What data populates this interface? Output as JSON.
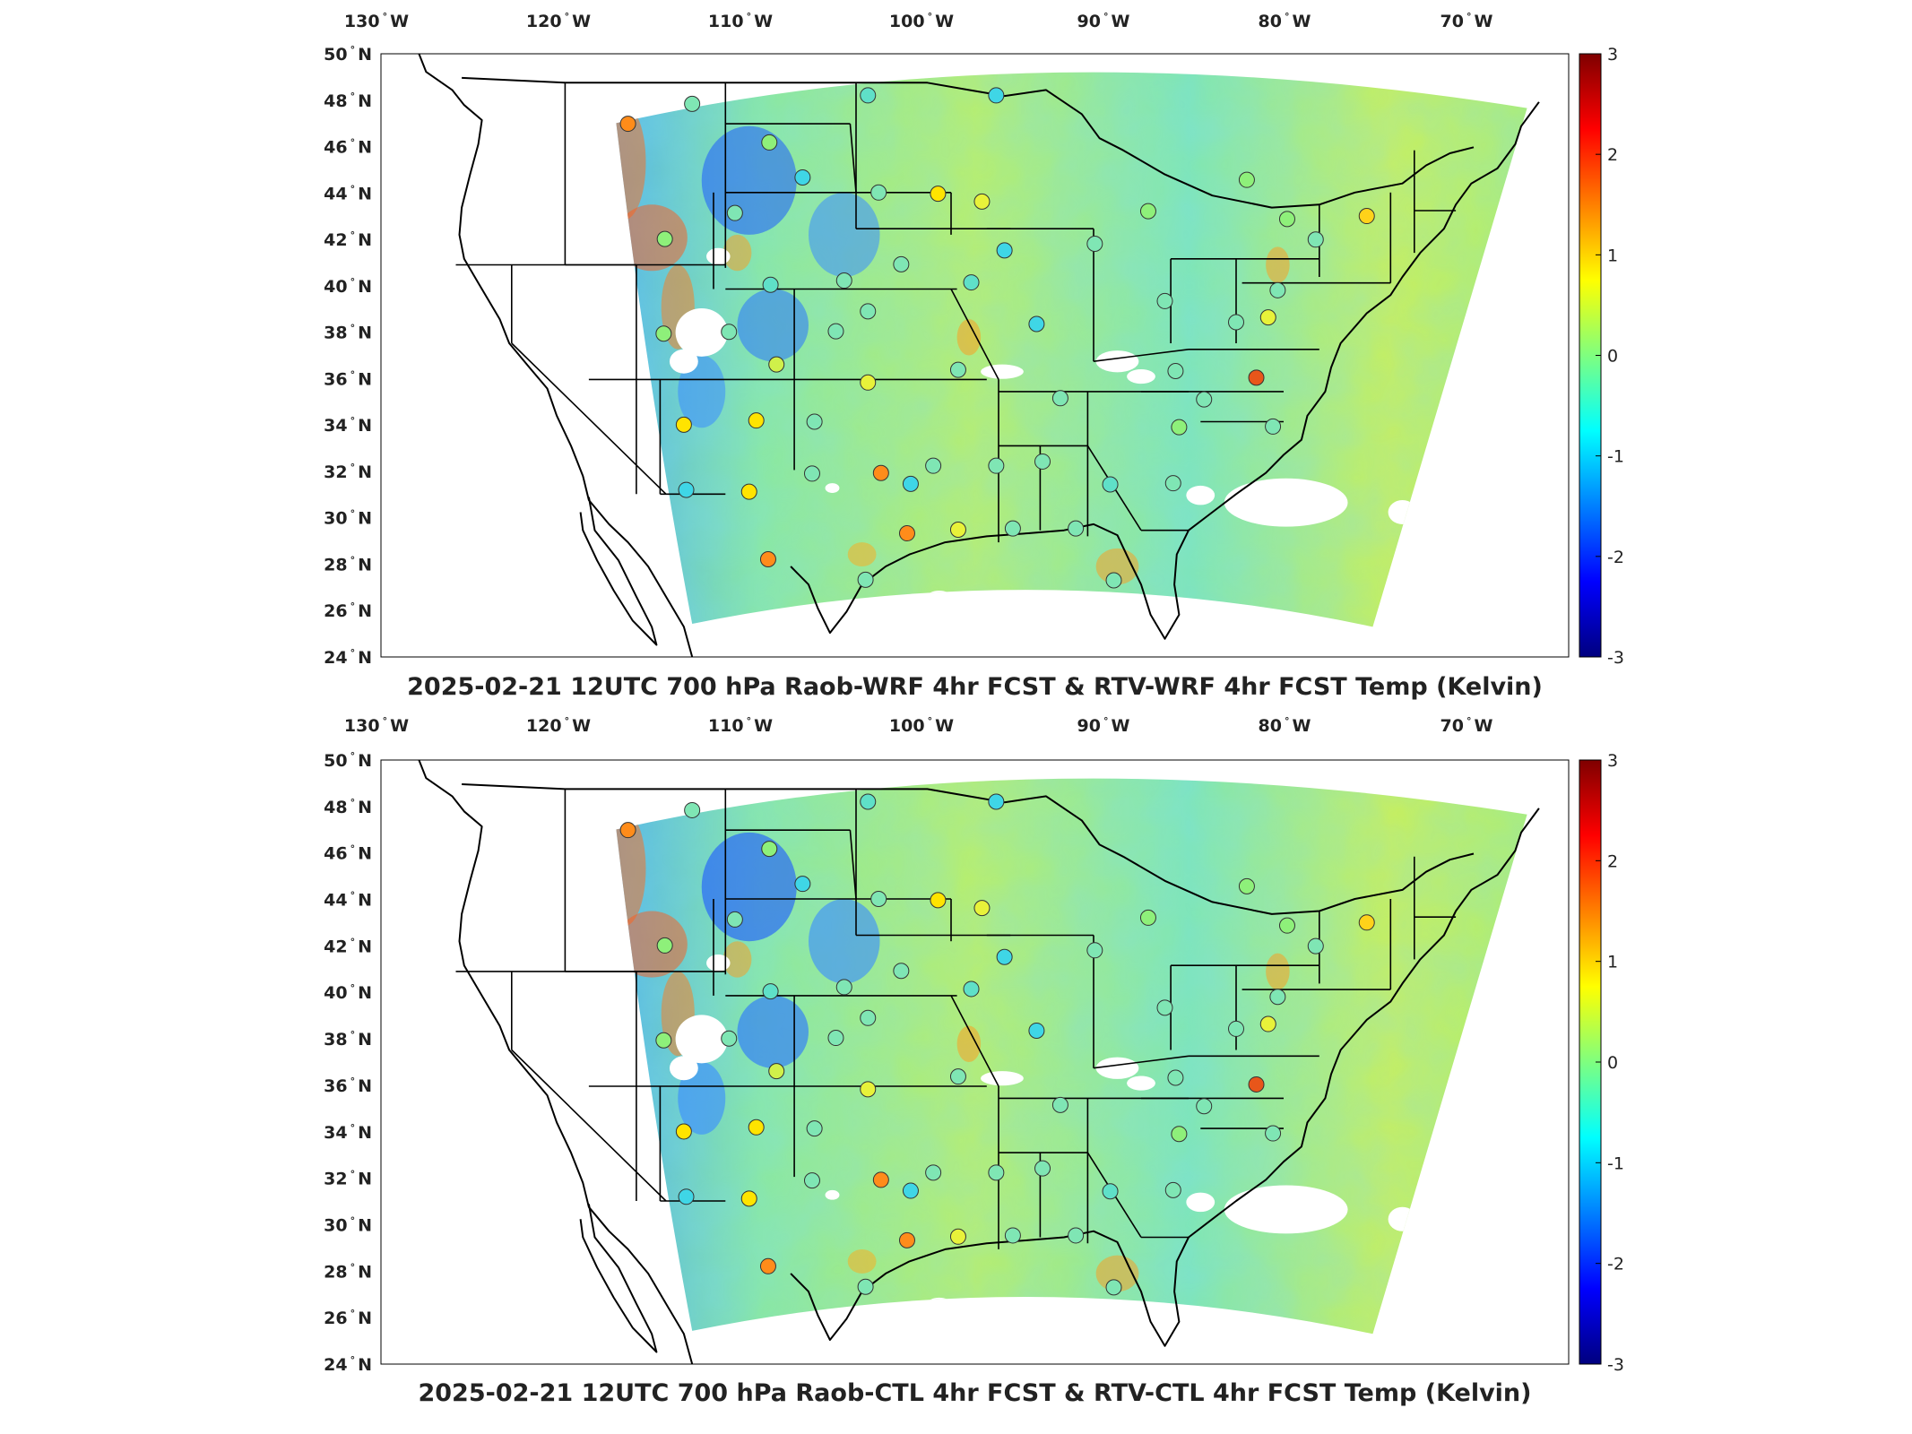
{
  "panels": [
    {
      "id": "top",
      "title": "2025-02-21 12UTC 700 hPa Raob-WRF 4hr FCST & RTV-WRF 4hr FCST Temp (Kelvin)"
    },
    {
      "id": "bottom",
      "title": "2025-02-21 12UTC 700 hPa Raob-CTL 4hr FCST & RTV-CTL 4hr FCST Temp (Kelvin)"
    }
  ],
  "map": {
    "lon_ticks": [
      {
        "num": "130",
        "hem": "W"
      },
      {
        "num": "120",
        "hem": "W"
      },
      {
        "num": "110",
        "hem": "W"
      },
      {
        "num": "100",
        "hem": "W"
      },
      {
        "num": "90",
        "hem": "W"
      },
      {
        "num": "80",
        "hem": "W"
      },
      {
        "num": "70",
        "hem": "W"
      }
    ],
    "lat_ticks": [
      {
        "num": "50",
        "hem": "N"
      },
      {
        "num": "48",
        "hem": "N"
      },
      {
        "num": "46",
        "hem": "N"
      },
      {
        "num": "44",
        "hem": "N"
      },
      {
        "num": "42",
        "hem": "N"
      },
      {
        "num": "40",
        "hem": "N"
      },
      {
        "num": "38",
        "hem": "N"
      },
      {
        "num": "36",
        "hem": "N"
      },
      {
        "num": "34",
        "hem": "N"
      },
      {
        "num": "32",
        "hem": "N"
      },
      {
        "num": "30",
        "hem": "N"
      },
      {
        "num": "28",
        "hem": "N"
      },
      {
        "num": "26",
        "hem": "N"
      },
      {
        "num": "24",
        "hem": "N"
      }
    ],
    "colorbar": {
      "colormap": "jet",
      "min": -3,
      "max": 3,
      "ticks": [
        "3",
        "2",
        "1",
        "0",
        "-1",
        "-2",
        "-3"
      ]
    },
    "colors": {
      "land_field_base": "#7fe6b4",
      "no_data": "#ffffff",
      "boundary": "#000000"
    }
  }
}
